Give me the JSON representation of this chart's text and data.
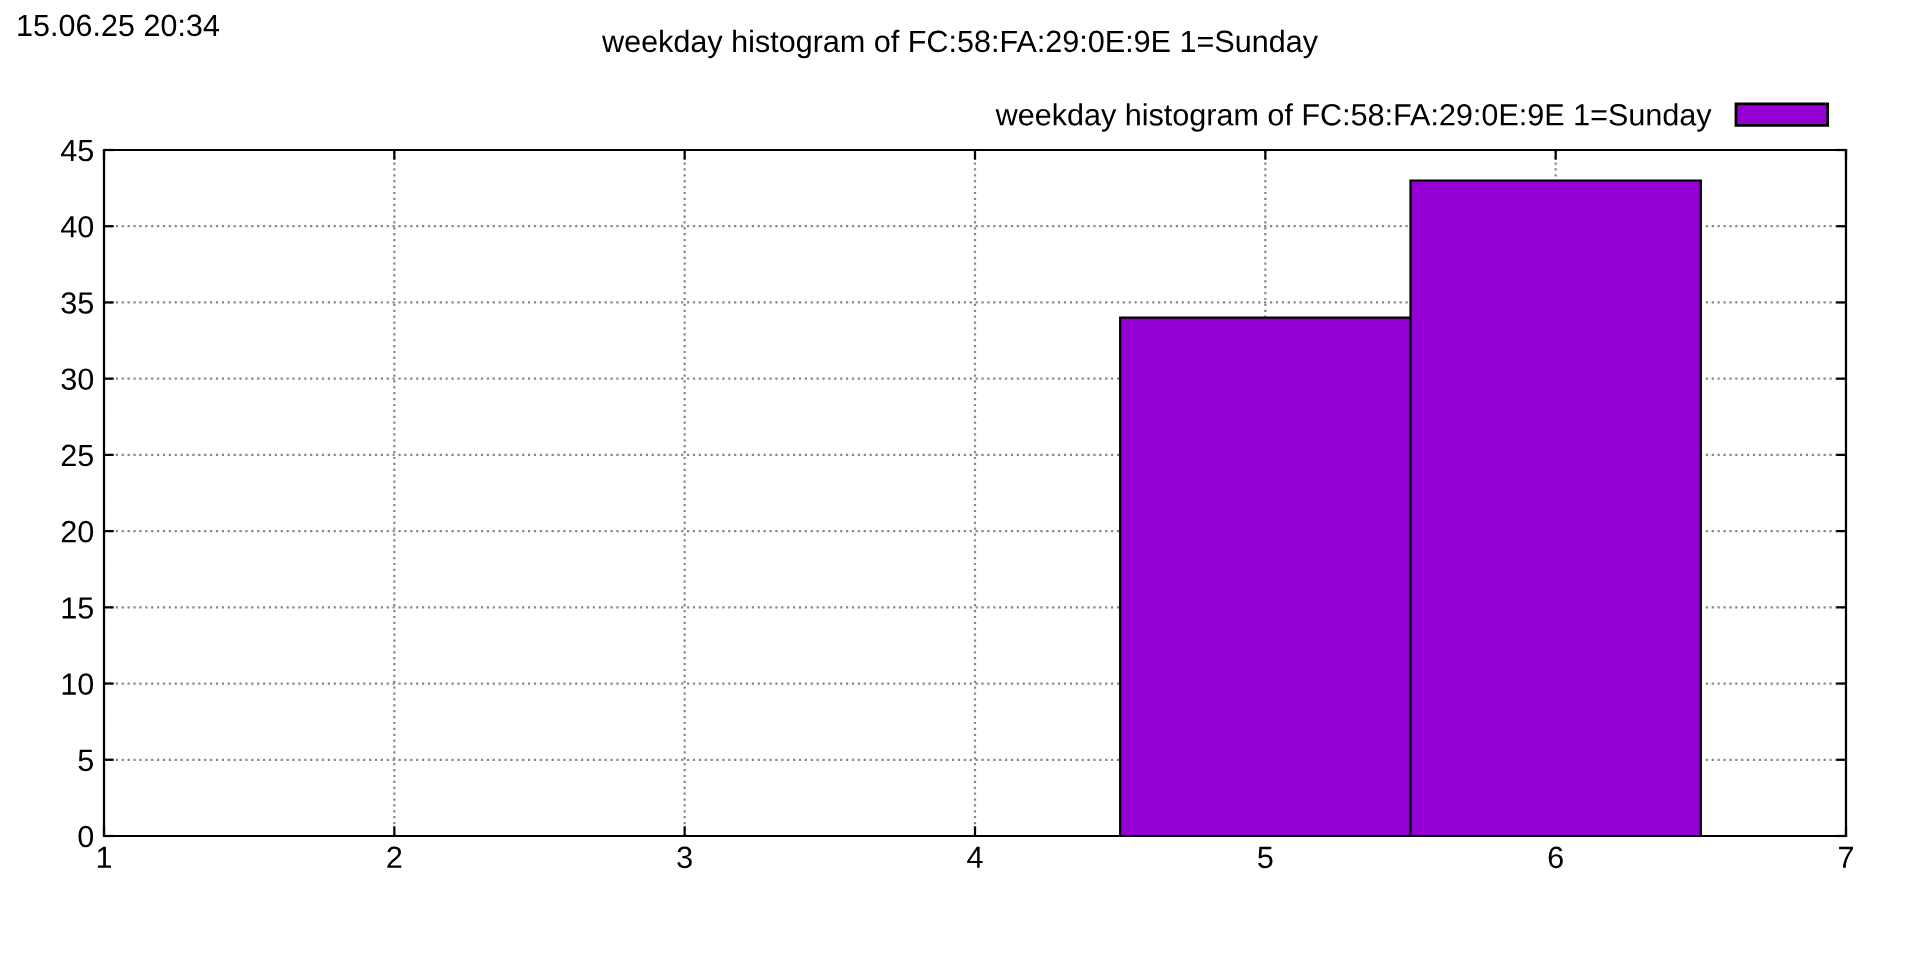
{
  "chart_data": {
    "type": "histogram",
    "title": "weekday histogram of FC:58:FA:29:0E:9E 1=Sunday",
    "annotations": [
      "15.06.25 20:34"
    ],
    "bins": [
      4.5,
      5.5,
      6.5
    ],
    "series": [
      {
        "name": "weekday histogram of FC:58:FA:29:0E:9E 1=Sunday",
        "color": "#9400d3",
        "values": [
          34,
          43
        ]
      }
    ],
    "xlim": [
      1,
      7
    ],
    "xticks": [
      1,
      2,
      3,
      4,
      5,
      6,
      7
    ],
    "ylim": [
      0,
      45
    ],
    "yticks": [
      0,
      5,
      10,
      15,
      20,
      25,
      30,
      35,
      40,
      45
    ],
    "grid": true,
    "legend": "top right"
  }
}
